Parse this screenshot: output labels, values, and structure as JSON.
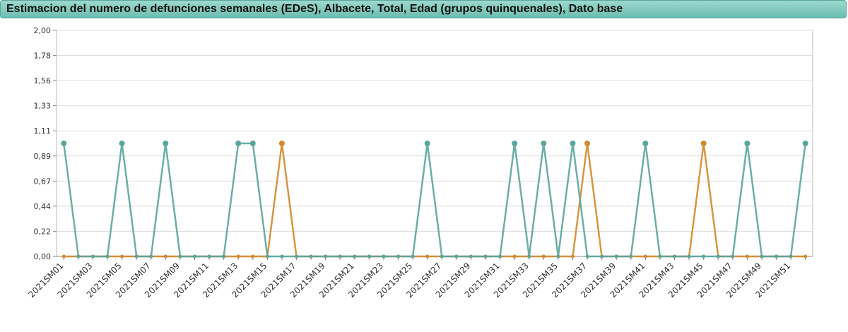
{
  "chart_data": {
    "type": "line",
    "title": "Estimacion del numero de defunciones semanales (EDeS), Albacete, Total, Edad (grupos quinquenales), Dato base",
    "xlabel": "",
    "ylabel": "",
    "ylim": [
      0,
      2
    ],
    "yticks": [
      "0,00",
      "0,22",
      "0,44",
      "0,67",
      "0,89",
      "1,11",
      "1,33",
      "1,56",
      "1,78",
      "2,00"
    ],
    "grid": true,
    "categories": [
      "2021SM01",
      "2021SM02",
      "2021SM03",
      "2021SM04",
      "2021SM05",
      "2021SM06",
      "2021SM07",
      "2021SM08",
      "2021SM09",
      "2021SM10",
      "2021SM11",
      "2021SM12",
      "2021SM13",
      "2021SM14",
      "2021SM15",
      "2021SM16",
      "2021SM17",
      "2021SM18",
      "2021SM19",
      "2021SM20",
      "2021SM21",
      "2021SM22",
      "2021SM23",
      "2021SM24",
      "2021SM25",
      "2021SM26",
      "2021SM27",
      "2021SM28",
      "2021SM29",
      "2021SM30",
      "2021SM31",
      "2021SM32",
      "2021SM33",
      "2021SM34",
      "2021SM35",
      "2021SM36",
      "2021SM37",
      "2021SM38",
      "2021SM39",
      "2021SM40",
      "2021SM41",
      "2021SM42",
      "2021SM43",
      "2021SM44",
      "2021SM45",
      "2021SM46",
      "2021SM47",
      "2021SM48",
      "2021SM49",
      "2021SM50",
      "2021SM51",
      "2021SM52"
    ],
    "xticks": [
      "2021SM01",
      "2021SM03",
      "2021SM05",
      "2021SM07",
      "2021SM09",
      "2021SM11",
      "2021SM13",
      "2021SM15",
      "2021SM17",
      "2021SM19",
      "2021SM21",
      "2021SM23",
      "2021SM25",
      "2021SM27",
      "2021SM29",
      "2021SM31",
      "2021SM33",
      "2021SM35",
      "2021SM37",
      "2021SM39",
      "2021SM41",
      "2021SM43",
      "2021SM45",
      "2021SM47",
      "2021SM49",
      "2021SM51"
    ],
    "series": [
      {
        "color": "#d28a2e",
        "values": [
          0,
          0,
          0,
          0,
          0,
          0,
          0,
          0,
          0,
          0,
          0,
          0,
          0,
          0,
          0,
          1,
          0,
          0,
          0,
          0,
          0,
          0,
          0,
          0,
          0,
          0,
          0,
          0,
          0,
          0,
          0,
          0,
          0,
          0,
          0,
          0,
          1,
          0,
          0,
          0,
          0,
          0,
          0,
          0,
          1,
          0,
          0,
          0,
          0,
          0,
          0,
          0
        ]
      },
      {
        "color": "#5ba59c",
        "values": [
          1,
          0,
          0,
          0,
          1,
          0,
          0,
          1,
          0,
          0,
          0,
          0,
          1,
          1,
          0,
          0,
          0,
          0,
          0,
          0,
          0,
          0,
          0,
          0,
          0,
          1,
          0,
          0,
          0,
          0,
          0,
          1,
          0,
          1,
          0,
          1,
          0,
          0,
          0,
          0,
          1,
          0,
          0,
          0,
          0,
          0,
          0,
          1,
          0,
          0,
          0,
          1
        ]
      }
    ]
  }
}
